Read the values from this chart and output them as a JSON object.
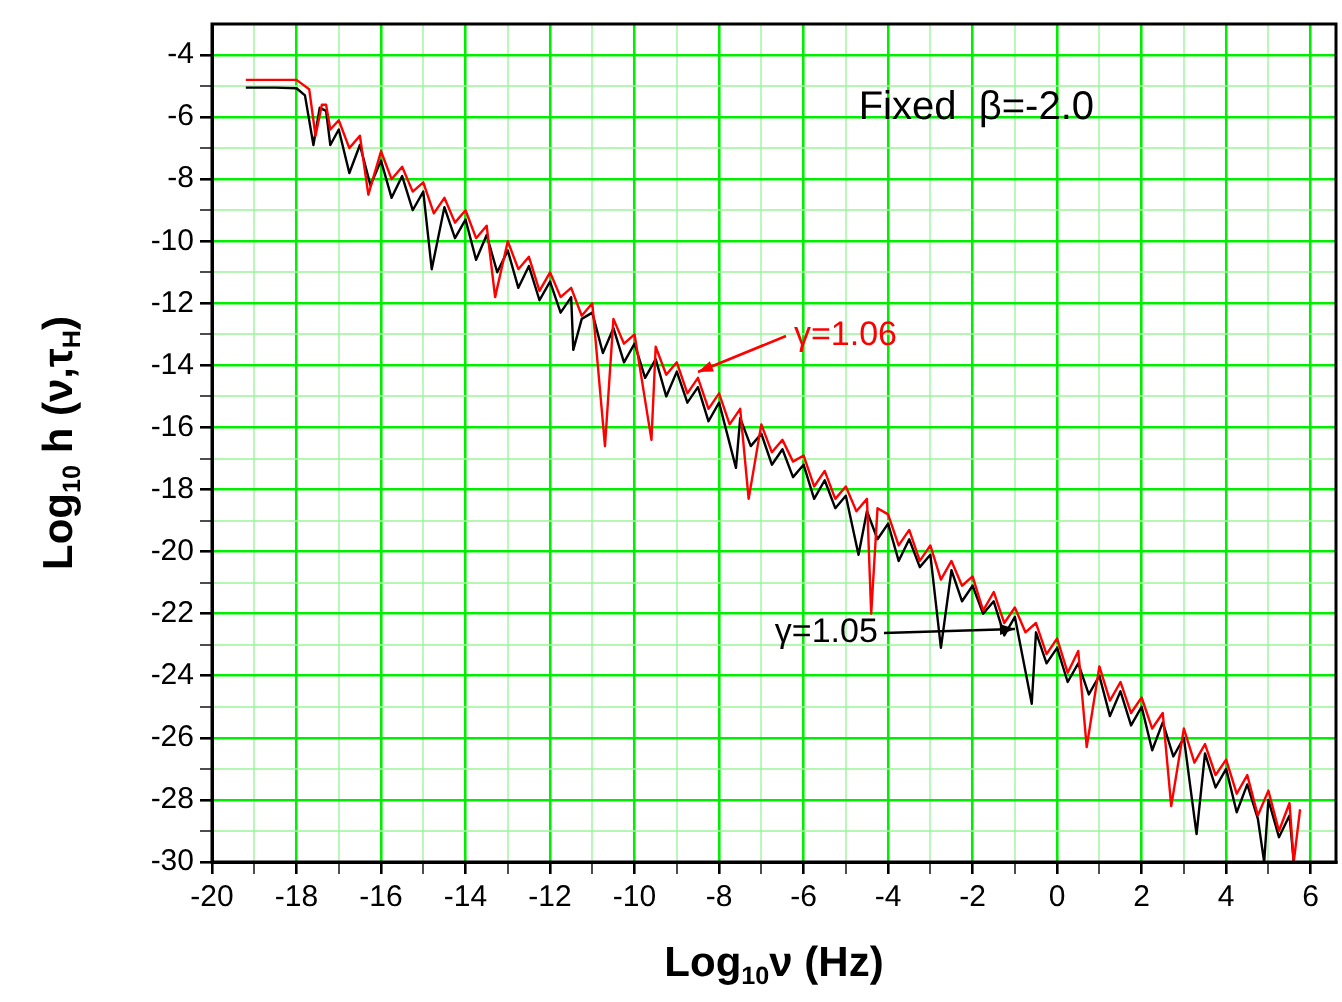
{
  "chart_data": {
    "type": "line",
    "xlabel": "Log$_{10}$ν (Hz)",
    "ylabel": "Log$_{10}$ h (ν,τ$_{H}$)",
    "annotations": [
      "Fixed  β=-2.0"
    ],
    "xlim": [
      -20,
      6.6
    ],
    "xticks": [
      -20,
      {
        "value": -19,
        "label": null
      },
      -18,
      {
        "value": -17,
        "label": null
      },
      -16,
      {
        "value": -15,
        "label": null
      },
      -14,
      {
        "value": -13,
        "label": null
      },
      -12,
      {
        "value": -11,
        "label": null
      },
      -10,
      {
        "value": -9,
        "label": null
      },
      -8,
      {
        "value": -7,
        "label": null
      },
      -6,
      {
        "value": -5,
        "label": null
      },
      -4,
      {
        "value": -3,
        "label": null
      },
      -2,
      {
        "value": -1,
        "label": null
      },
      0,
      {
        "value": 1,
        "label": null
      },
      2,
      {
        "value": 3,
        "label": null
      },
      4,
      {
        "value": 5,
        "label": null
      },
      6
    ],
    "ylim": [
      -30,
      -3
    ],
    "yticks": [
      -30,
      {
        "value": -29,
        "label": null
      },
      -28,
      {
        "value": -27,
        "label": null
      },
      -26,
      {
        "value": -25,
        "label": null
      },
      -24,
      {
        "value": -23,
        "label": null
      },
      -22,
      {
        "value": -21,
        "label": null
      },
      -20,
      {
        "value": -19,
        "label": null
      },
      -18,
      {
        "value": -17,
        "label": null
      },
      -16,
      {
        "value": -15,
        "label": null
      },
      -14,
      {
        "value": -13,
        "label": null
      },
      -12,
      {
        "value": -11,
        "label": null
      },
      -10,
      {
        "value": -9,
        "label": null
      },
      -8,
      {
        "value": -7,
        "label": null
      },
      -6,
      {
        "value": -5,
        "label": null
      },
      -4
    ],
    "grid": true,
    "marker": "none",
    "line_style": "solid",
    "series": [
      {
        "name": "γ=1.05",
        "color": "#000000",
        "x": [
          -19.2,
          -18.5,
          -18,
          -17.8,
          -17.6,
          -17.45,
          -17.3,
          -17.2,
          -17,
          -16.75,
          -16.5,
          -16.25,
          -16,
          -15.75,
          -15.5,
          -15.25,
          -15,
          -14.8,
          -14.5,
          -14.25,
          -14,
          -13.75,
          -13.5,
          -13.25,
          -13,
          -12.75,
          -12.5,
          -12.25,
          -12,
          -11.75,
          -11.5,
          -11.45,
          -11.25,
          -11,
          -10.75,
          -10.5,
          -10.25,
          -10,
          -9.75,
          -9.5,
          -9.25,
          -9,
          -8.75,
          -8.5,
          -8.25,
          -8,
          -7.6,
          -7.5,
          -7.25,
          -7,
          -6.75,
          -6.5,
          -6.25,
          -6,
          -5.75,
          -5.5,
          -5.25,
          -5,
          -4.7,
          -4.5,
          -4.25,
          -4,
          -3.75,
          -3.5,
          -3.25,
          -3,
          -2.75,
          -2.5,
          -2.25,
          -2,
          -1.75,
          -1.5,
          -1.25,
          -1,
          -0.6,
          -0.5,
          -0.25,
          0,
          0.25,
          0.5,
          0.75,
          1,
          1.25,
          1.5,
          1.75,
          2,
          2.25,
          2.5,
          2.75,
          3,
          3.3,
          3.5,
          3.75,
          4,
          4.25,
          4.5,
          4.75,
          4.9,
          5,
          5.25,
          5.5,
          5.6
        ],
        "values": [
          -5.05,
          -5.05,
          -5.07,
          -5.3,
          -6.9,
          -5.7,
          -5.8,
          -6.9,
          -6.4,
          -7.8,
          -6.9,
          -8.2,
          -7.4,
          -8.6,
          -7.9,
          -9.0,
          -8.4,
          -10.9,
          -8.9,
          -9.9,
          -9.3,
          -10.6,
          -9.8,
          -11.0,
          -10.3,
          -11.5,
          -10.8,
          -11.9,
          -11.3,
          -12.3,
          -11.8,
          -13.5,
          -12.5,
          -12.3,
          -13.6,
          -12.8,
          -13.9,
          -13.3,
          -14.4,
          -13.8,
          -15.0,
          -14.2,
          -15.2,
          -14.7,
          -15.8,
          -15.2,
          -17.3,
          -15.7,
          -16.6,
          -16.2,
          -17.2,
          -16.7,
          -17.6,
          -17.2,
          -18.3,
          -17.7,
          -18.6,
          -18.2,
          -20.1,
          -18.7,
          -19.6,
          -19.1,
          -20.3,
          -19.6,
          -20.5,
          -20.1,
          -23.1,
          -20.6,
          -21.6,
          -21.1,
          -22.0,
          -21.6,
          -22.7,
          -22.1,
          -24.9,
          -22.6,
          -23.6,
          -23.1,
          -24.2,
          -23.6,
          -24.6,
          -24.0,
          -25.3,
          -24.5,
          -25.6,
          -25.0,
          -26.4,
          -25.5,
          -26.6,
          -26.0,
          -29.1,
          -26.5,
          -27.6,
          -27.0,
          -28.4,
          -27.5,
          -28.6,
          -30,
          -28.0,
          -29.2,
          -28.5,
          -30
        ]
      },
      {
        "name": "γ=1.06",
        "color": "#ff0000",
        "x": [
          -19.2,
          -18.5,
          -18,
          -17.7,
          -17.55,
          -17.4,
          -17.3,
          -17.2,
          -17,
          -16.75,
          -16.5,
          -16.3,
          -16,
          -15.75,
          -15.5,
          -15.25,
          -15,
          -14.75,
          -14.5,
          -14.25,
          -14,
          -13.75,
          -13.5,
          -13.3,
          -13,
          -12.75,
          -12.5,
          -12.25,
          -12,
          -11.75,
          -11.5,
          -11.25,
          -11,
          -10.7,
          -10.5,
          -10.25,
          -10,
          -9.6,
          -9.5,
          -9.25,
          -9,
          -8.75,
          -8.5,
          -8.25,
          -8,
          -7.75,
          -7.5,
          -7.3,
          -7,
          -6.75,
          -6.5,
          -6.25,
          -6,
          -5.75,
          -5.5,
          -5.25,
          -5,
          -4.75,
          -4.5,
          -4.4,
          -4.25,
          -4,
          -3.75,
          -3.5,
          -3.25,
          -3,
          -2.75,
          -2.5,
          -2.25,
          -2,
          -1.75,
          -1.5,
          -1.25,
          -1,
          -0.75,
          -0.5,
          -0.25,
          0,
          0.25,
          0.5,
          0.7,
          1,
          1.25,
          1.5,
          1.75,
          2,
          2.25,
          2.5,
          2.7,
          3,
          3.25,
          3.5,
          3.75,
          4,
          4.25,
          4.5,
          4.75,
          5,
          5.25,
          5.5,
          5.6,
          5.75
        ],
        "values": [
          -4.8,
          -4.8,
          -4.8,
          -5.1,
          -6.6,
          -5.6,
          -5.6,
          -6.4,
          -6.1,
          -7.0,
          -6.6,
          -8.5,
          -7.1,
          -8.0,
          -7.6,
          -8.4,
          -8.1,
          -9.1,
          -8.6,
          -9.4,
          -9.0,
          -9.9,
          -9.5,
          -11.8,
          -10.0,
          -10.9,
          -10.5,
          -11.6,
          -11.0,
          -11.8,
          -11.5,
          -12.4,
          -12.0,
          -16.6,
          -12.5,
          -13.3,
          -13.0,
          -16.4,
          -13.4,
          -14.3,
          -13.9,
          -14.9,
          -14.4,
          -15.4,
          -14.9,
          -15.9,
          -15.4,
          -18.3,
          -15.9,
          -16.8,
          -16.4,
          -17.1,
          -16.9,
          -17.9,
          -17.4,
          -18.3,
          -17.9,
          -18.7,
          -18.3,
          -22.0,
          -18.6,
          -18.8,
          -19.8,
          -19.3,
          -20.3,
          -19.8,
          -20.9,
          -20.3,
          -21.1,
          -20.8,
          -21.9,
          -21.3,
          -22.3,
          -21.8,
          -22.6,
          -22.3,
          -23.3,
          -22.8,
          -23.9,
          -23.2,
          -26.3,
          -23.7,
          -24.8,
          -24.2,
          -25.2,
          -24.7,
          -25.7,
          -25.2,
          -28.2,
          -25.7,
          -26.8,
          -26.2,
          -27.2,
          -26.7,
          -27.8,
          -27.2,
          -28.5,
          -27.7,
          -29.0,
          -28.1,
          -30,
          -28.3
        ]
      }
    ]
  }
}
